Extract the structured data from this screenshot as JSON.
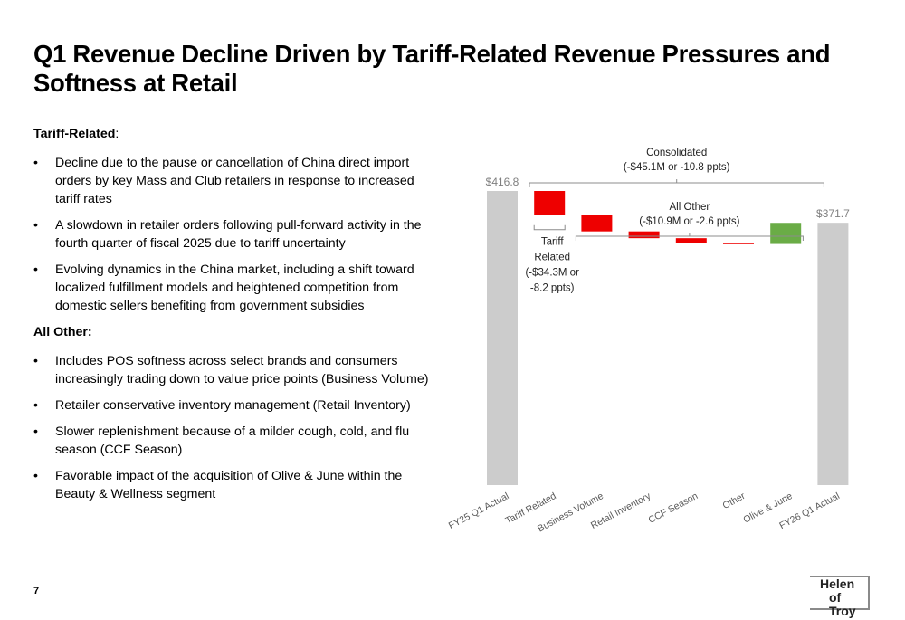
{
  "title": "Q1 Revenue Decline Driven by Tariff-Related Revenue Pressures and Softness at Retail",
  "sections": [
    {
      "heading": "Tariff-Related",
      "heading_suffix": ":",
      "bullets": [
        "Decline due to the pause or cancellation of China direct import orders by key Mass and Club retailers in response to increased tariff rates",
        "A slowdown in retailer orders following pull-forward activity in the fourth quarter of fiscal 2025 due to tariff uncertainty",
        "Evolving dynamics in the China market, including a shift toward localized fulfillment models and heightened competition from domestic sellers benefiting from government subsidies"
      ]
    },
    {
      "heading": "All Other:",
      "heading_suffix": "",
      "bullets": [
        "Includes POS softness across select brands and consumers increasingly trading down to value price points (Business Volume)",
        "Retailer conservative inventory management (Retail Inventory)",
        "Slower replenishment because of a milder cough, cold, and flu season (CCF Season)",
        "Favorable impact of the acquisition of Olive & June within the Beauty & Wellness segment"
      ]
    }
  ],
  "page_number": "7",
  "logo": {
    "line1": "Helen",
    "line2": "of Troy"
  },
  "chart_data": {
    "type": "waterfall",
    "categories": [
      "FY25 Q1 Actual",
      "Tariff Related",
      "Business Volume",
      "Retail Inventory",
      "CCF Season",
      "Other",
      "Olive & June",
      "FY26 Q1 Actual"
    ],
    "values": [
      416.8,
      -34.3,
      -23.0,
      -9.6,
      -7.2,
      -1.0,
      29.9,
      371.7
    ],
    "kinds": [
      "total",
      "delta",
      "delta",
      "delta",
      "delta",
      "delta",
      "delta",
      "total"
    ],
    "total_labels": [
      "$416.8",
      "",
      "",
      "",
      "",
      "",
      "",
      "$371.7"
    ],
    "colors": {
      "total": "#cccccc",
      "decrease": "#ee0000",
      "increase": "#6aac46",
      "label": "#7f7f7f",
      "bracket": "#8c8c8c"
    },
    "annotations": {
      "consolidated": [
        "Consolidated",
        "(-$45.1M or -10.8 ppts)"
      ],
      "all_other": [
        "All Other",
        "(-$10.9M or -2.6 ppts)"
      ],
      "tariff": [
        "Tariff",
        "Related",
        "(-$34.3M or",
        "-8.2 ppts)"
      ]
    }
  }
}
